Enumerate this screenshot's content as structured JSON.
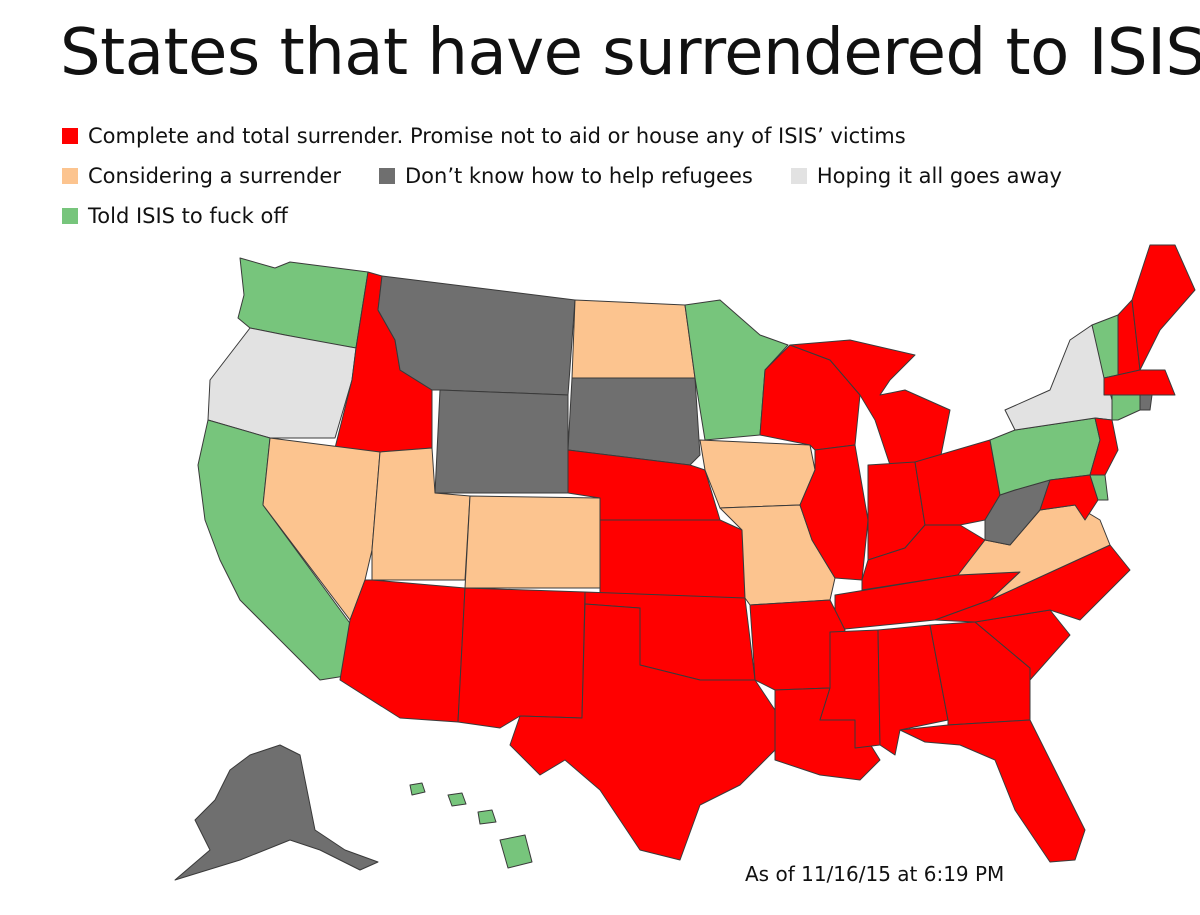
{
  "title": "States that have surrendered to ISIS",
  "legend": [
    {
      "label": "Complete and total surrender. Promise not to aid or house any of ISIS’ victims",
      "color": "#ff0000"
    },
    {
      "label": "Considering a surrender",
      "color": "#fcc48f"
    },
    {
      "label": "Don’t know how to help refugees",
      "color": "#6f6f6f"
    },
    {
      "label": "Hoping it all goes away",
      "color": "#e2e2e2"
    },
    {
      "label": "Told ISIS to fuck off",
      "color": "#77c57c"
    }
  ],
  "footnote": "As of 11/16/15 at 6:19 PM",
  "states": {
    "surrender": [
      "ID",
      "AZ",
      "NM",
      "TX",
      "OK",
      "KS",
      "NE",
      "AR",
      "LA",
      "MS",
      "AL",
      "GA",
      "FL",
      "SC",
      "NC",
      "TN",
      "KY",
      "IN",
      "IL",
      "MI",
      "WI",
      "OH",
      "MD",
      "NJ",
      "NH",
      "ME",
      "MA"
    ],
    "considering": [
      "NV",
      "UT",
      "CO",
      "ND",
      "IA",
      "MO",
      "VA"
    ],
    "dont_know": [
      "MT",
      "WY",
      "SD",
      "WV",
      "AK",
      "RI"
    ],
    "hoping": [
      "OR",
      "NY"
    ],
    "told_off": [
      "WA",
      "CA",
      "MN",
      "PA",
      "VT",
      "CT",
      "DE",
      "HI"
    ]
  }
}
